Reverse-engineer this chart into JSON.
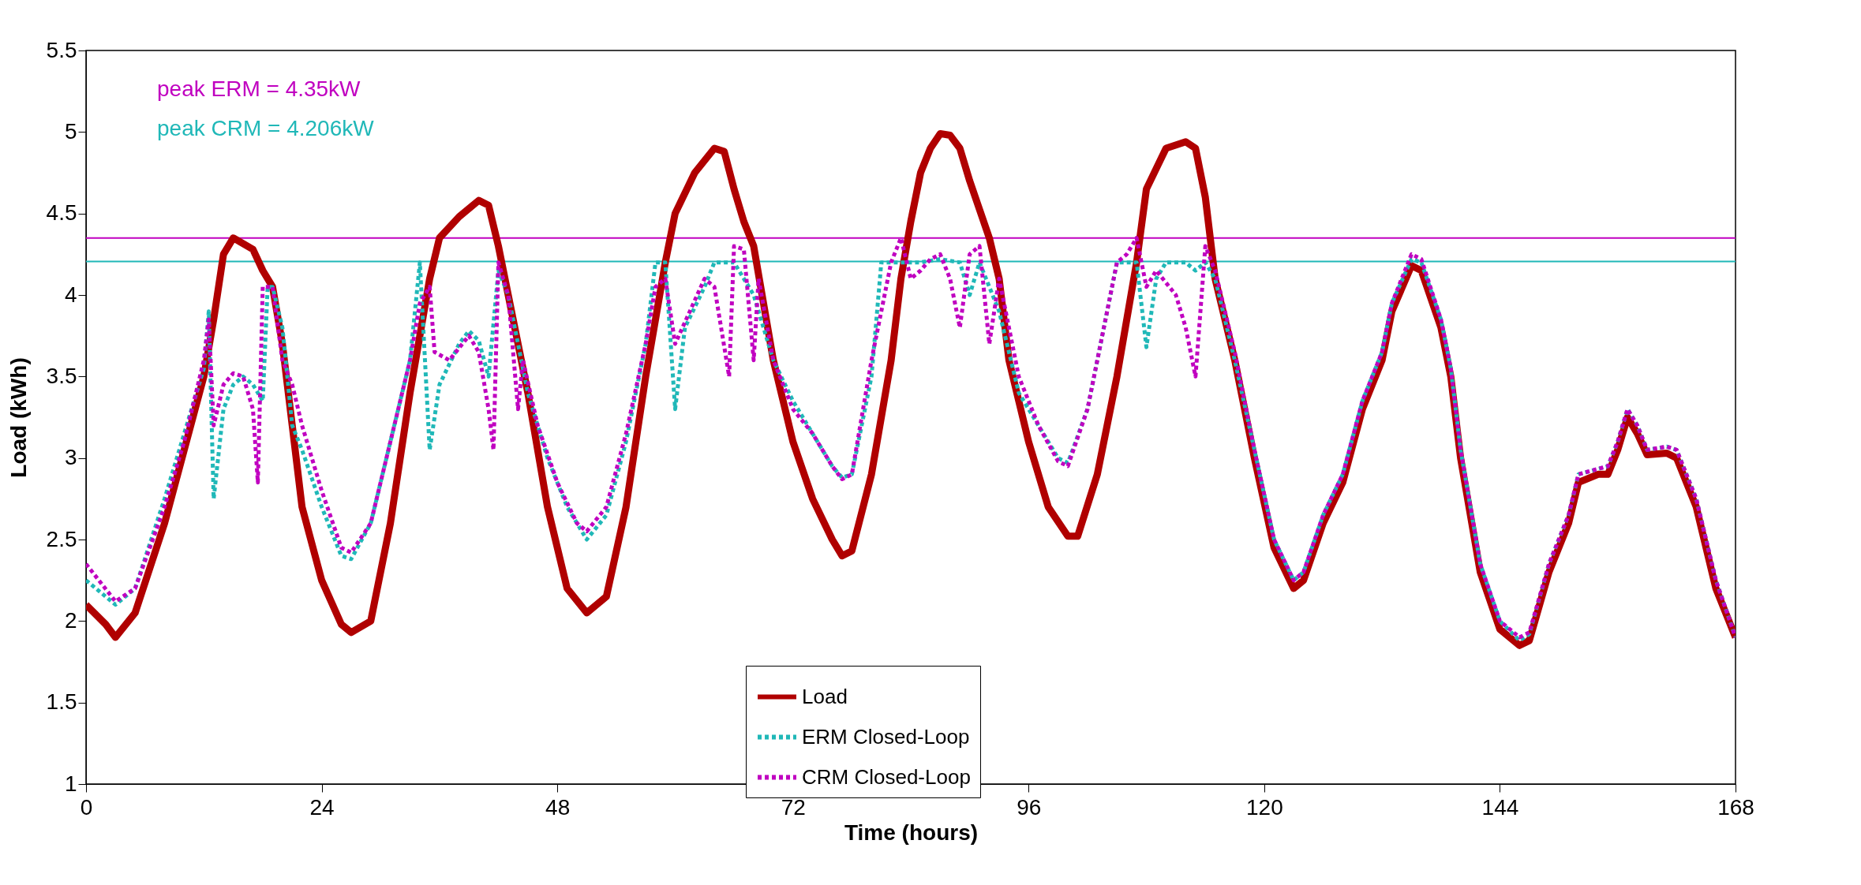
{
  "chart_data": {
    "type": "line",
    "xlabel": "Time (hours)",
    "ylabel": "Load (kWh)",
    "xlim": [
      0,
      168
    ],
    "xticks": [
      0,
      24,
      48,
      72,
      96,
      120,
      144,
      168
    ],
    "ylim": [
      1,
      5.5
    ],
    "yticks": [
      1,
      1.5,
      2,
      2.5,
      3,
      3.5,
      4,
      4.5,
      5,
      5.5
    ],
    "grid": false,
    "legend": "bottom",
    "marker": "none",
    "ref_lines": [
      {
        "axis": "y",
        "value": 4.35,
        "label": "peak ERM = 4.35kW",
        "color": "#c000c0",
        "line_style": "solid"
      },
      {
        "axis": "y",
        "value": 4.206,
        "label": "peak CRM = 4.206kW",
        "color": "#20b8b8",
        "line_style": "solid"
      }
    ],
    "series": [
      {
        "name": "Load",
        "color": "#b00000",
        "line_style": "solid",
        "x": [
          0,
          2,
          3,
          5,
          8,
          10,
          12,
          13,
          14,
          15,
          17,
          18,
          19,
          20,
          21,
          22,
          24,
          26,
          27,
          29,
          31,
          33,
          35,
          36,
          38,
          40,
          41,
          42,
          43,
          45,
          47,
          49,
          51,
          53,
          55,
          57,
          59,
          60,
          62,
          64,
          65,
          66,
          67,
          68,
          70,
          72,
          74,
          76,
          77,
          78,
          80,
          82,
          83,
          84,
          85,
          86,
          87,
          88,
          89,
          90,
          92,
          93,
          94,
          96,
          98,
          100,
          101,
          103,
          105,
          107,
          108,
          110,
          112,
          113,
          114,
          115,
          117,
          119,
          121,
          123,
          124,
          126,
          128,
          130,
          132,
          133,
          135,
          136,
          138,
          139,
          140,
          142,
          144,
          146,
          147,
          149,
          151,
          152,
          154,
          155,
          156,
          157,
          158,
          159,
          161,
          162,
          164,
          166,
          168
        ],
        "values": [
          2.1,
          1.98,
          1.9,
          2.05,
          2.6,
          3.05,
          3.5,
          3.85,
          4.25,
          4.35,
          4.28,
          4.15,
          4.05,
          3.7,
          3.2,
          2.7,
          2.25,
          1.98,
          1.93,
          2.0,
          2.6,
          3.4,
          4.1,
          4.35,
          4.48,
          4.58,
          4.55,
          4.3,
          4.0,
          3.4,
          2.7,
          2.2,
          2.05,
          2.15,
          2.7,
          3.5,
          4.2,
          4.5,
          4.75,
          4.9,
          4.88,
          4.65,
          4.45,
          4.3,
          3.6,
          3.1,
          2.75,
          2.5,
          2.4,
          2.43,
          2.9,
          3.6,
          4.1,
          4.45,
          4.75,
          4.9,
          4.99,
          4.98,
          4.9,
          4.7,
          4.35,
          4.1,
          3.6,
          3.1,
          2.7,
          2.52,
          2.52,
          2.9,
          3.5,
          4.2,
          4.65,
          4.9,
          4.94,
          4.9,
          4.6,
          4.1,
          3.6,
          3.0,
          2.45,
          2.2,
          2.25,
          2.6,
          2.85,
          3.3,
          3.6,
          3.9,
          4.18,
          4.15,
          3.8,
          3.5,
          3.0,
          2.3,
          1.95,
          1.85,
          1.88,
          2.3,
          2.6,
          2.85,
          2.9,
          2.9,
          3.05,
          3.25,
          3.15,
          3.02,
          3.03,
          3.0,
          2.7,
          2.2,
          1.9
        ]
      },
      {
        "name": "ERM Closed-Loop",
        "color": "#20b8b8",
        "line_style": "dotted",
        "x": [
          0,
          3,
          5,
          8,
          10,
          11,
          12,
          12.5,
          13,
          14,
          15,
          16,
          17,
          18,
          18.5,
          19,
          20,
          21,
          22,
          24,
          26,
          27,
          29,
          31,
          33,
          34,
          35,
          36,
          38,
          39,
          40,
          41,
          42,
          43,
          45,
          47,
          49,
          51,
          53,
          55,
          57,
          58,
          59,
          60,
          61,
          63,
          64,
          65,
          66,
          68,
          70,
          72,
          74,
          76,
          77,
          78,
          80,
          81,
          83,
          85,
          87,
          89,
          90,
          91,
          93,
          95,
          97,
          99,
          100,
          102,
          104,
          105,
          106,
          107,
          108,
          109,
          110,
          112,
          113,
          114,
          115,
          117,
          119,
          121,
          123,
          124,
          126,
          128,
          130,
          132,
          133,
          135,
          136,
          138,
          139,
          140,
          142,
          144,
          146,
          147,
          149,
          151,
          152,
          155,
          156,
          157,
          158,
          159,
          161,
          162,
          164,
          166,
          168
        ],
        "values": [
          2.25,
          2.1,
          2.2,
          2.75,
          3.15,
          3.35,
          3.55,
          3.9,
          2.75,
          3.3,
          3.45,
          3.5,
          3.45,
          3.35,
          4.05,
          4.05,
          3.8,
          3.2,
          3.05,
          2.7,
          2.4,
          2.38,
          2.6,
          3.1,
          3.6,
          4.2,
          3.05,
          3.45,
          3.7,
          3.78,
          3.72,
          3.5,
          4.15,
          4.0,
          3.4,
          3.0,
          2.7,
          2.5,
          2.65,
          3.1,
          3.7,
          4.2,
          4.2,
          3.3,
          3.8,
          4.05,
          4.2,
          4.2,
          4.2,
          4.0,
          3.6,
          3.35,
          3.15,
          2.95,
          2.88,
          2.9,
          3.5,
          4.2,
          4.2,
          4.2,
          4.22,
          4.2,
          4.0,
          4.2,
          3.9,
          3.4,
          3.2,
          3.0,
          2.97,
          3.3,
          3.9,
          4.2,
          4.2,
          4.2,
          3.68,
          4.1,
          4.2,
          4.2,
          4.15,
          4.2,
          4.1,
          3.6,
          3.05,
          2.5,
          2.25,
          2.3,
          2.65,
          2.9,
          3.35,
          3.65,
          3.95,
          4.22,
          4.2,
          3.85,
          3.55,
          3.05,
          2.35,
          2.0,
          1.88,
          1.92,
          2.35,
          2.65,
          2.9,
          2.95,
          3.1,
          3.3,
          3.2,
          3.05,
          3.07,
          3.05,
          2.75,
          2.25,
          1.9
        ]
      },
      {
        "name": "CRM Closed-Loop",
        "color": "#c000c0",
        "line_style": "dotted",
        "x": [
          0,
          3,
          5,
          8,
          10,
          12,
          12.5,
          13,
          14,
          15,
          16,
          17,
          17.5,
          18,
          19,
          20,
          21,
          22,
          24,
          26,
          27,
          29,
          31,
          33,
          34,
          35,
          35.5,
          37,
          39,
          40,
          41,
          41.5,
          42,
          43,
          44,
          44.5,
          46,
          48,
          50,
          51,
          53,
          55,
          57,
          58,
          59,
          60,
          61.5,
          63,
          64,
          65.5,
          66,
          67,
          68,
          68.5,
          70,
          72,
          74,
          76,
          77,
          78,
          80,
          82,
          83,
          84,
          85,
          86,
          87,
          88,
          89,
          90,
          91,
          92,
          93,
          95,
          97,
          99,
          100,
          102,
          104,
          105,
          106,
          107,
          108,
          109,
          111,
          112,
          113,
          114,
          115,
          117,
          119,
          121,
          123,
          124,
          126,
          128,
          130,
          132,
          133,
          135,
          136,
          138,
          139,
          140,
          142,
          144,
          146,
          147,
          149,
          151,
          152,
          155,
          156,
          157,
          158,
          159,
          161,
          162,
          164,
          166,
          168
        ],
        "values": [
          2.35,
          2.12,
          2.2,
          2.7,
          3.1,
          3.6,
          3.85,
          3.2,
          3.45,
          3.52,
          3.5,
          3.3,
          2.85,
          4.05,
          4.05,
          3.6,
          3.45,
          3.2,
          2.8,
          2.45,
          2.42,
          2.6,
          3.1,
          3.6,
          3.95,
          4.05,
          3.65,
          3.6,
          3.75,
          3.65,
          3.3,
          3.05,
          4.2,
          4.0,
          3.3,
          3.6,
          3.2,
          2.85,
          2.6,
          2.55,
          2.7,
          3.15,
          3.7,
          4.05,
          4.1,
          3.7,
          3.9,
          4.1,
          4.05,
          3.5,
          4.3,
          4.28,
          3.6,
          4.1,
          3.6,
          3.3,
          3.15,
          2.95,
          2.87,
          2.9,
          3.6,
          4.2,
          4.35,
          4.1,
          4.15,
          4.22,
          4.25,
          4.1,
          3.8,
          4.25,
          4.3,
          3.7,
          4.1,
          3.5,
          3.2,
          2.98,
          2.95,
          3.3,
          3.9,
          4.2,
          4.25,
          4.35,
          4.05,
          4.15,
          4.0,
          3.8,
          3.5,
          4.3,
          4.15,
          3.65,
          3.05,
          2.5,
          2.25,
          2.3,
          2.65,
          2.9,
          3.35,
          3.65,
          3.95,
          4.25,
          4.22,
          3.85,
          3.55,
          3.05,
          2.35,
          2.0,
          1.9,
          1.93,
          2.35,
          2.65,
          2.9,
          2.95,
          3.1,
          3.3,
          3.2,
          3.05,
          3.07,
          3.05,
          2.75,
          2.25,
          1.9
        ]
      }
    ]
  }
}
